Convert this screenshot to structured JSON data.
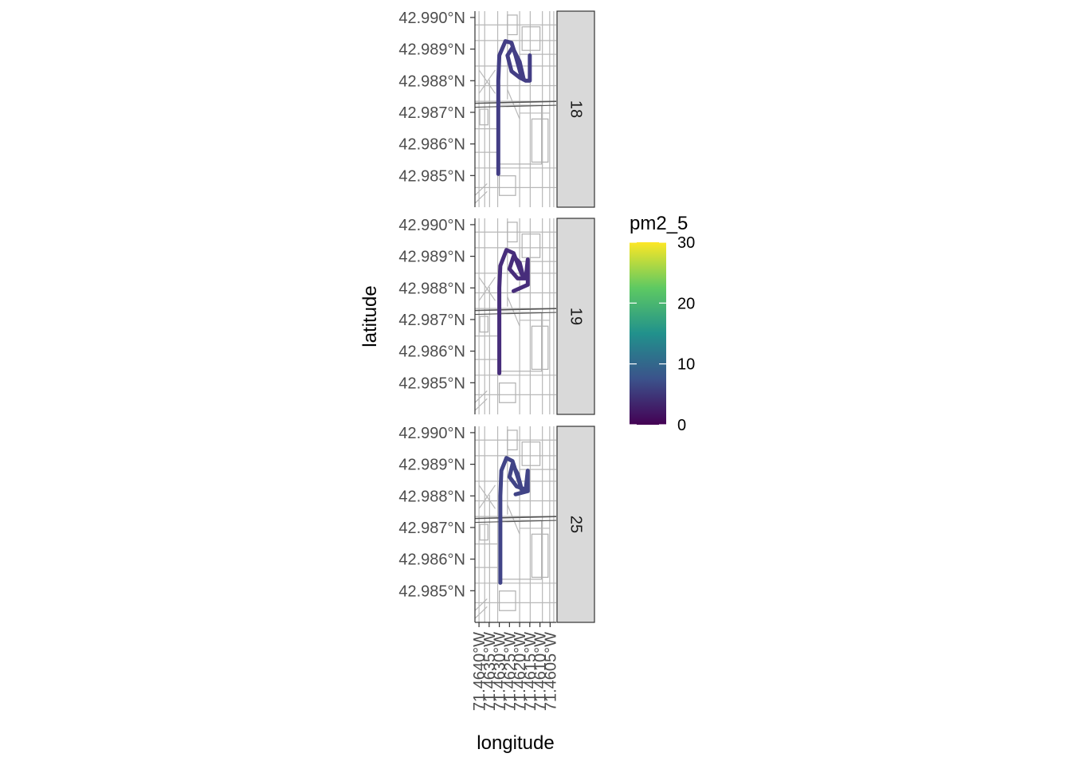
{
  "chart_data": {
    "type": "scatter",
    "facet_variable_values": [
      "18",
      "19",
      "25"
    ],
    "xlabel": "longitude",
    "ylabel": "latitude",
    "x_ticks": [
      -71.464,
      -71.4635,
      -71.463,
      -71.4625,
      -71.462,
      -71.4615,
      -71.461,
      -71.4605
    ],
    "x_tick_labels": [
      "71.4640°W",
      "71.4635°W",
      "71.4630°W",
      "71.4625°W",
      "71.4620°W",
      "71.4615°W",
      "71.4610°W",
      "71.4605°W"
    ],
    "y_ticks": [
      42.99,
      42.989,
      42.988,
      42.987,
      42.986,
      42.985
    ],
    "y_tick_labels": [
      "42.990°N",
      "42.989°N",
      "42.988°N",
      "42.987°N",
      "42.986°N",
      "42.985°N"
    ],
    "xlim": [
      -71.4642,
      -71.4602
    ],
    "ylim": [
      42.984,
      42.9902
    ],
    "grid": false,
    "basemap": "street-map",
    "legend": {
      "title": "pm2_5",
      "position": "right",
      "range": [
        0,
        30
      ],
      "ticks": [
        0,
        10,
        20,
        30
      ],
      "tick_labels": [
        "0",
        "10",
        "20",
        "30"
      ],
      "colormap": "viridis",
      "colors": [
        "#440154",
        "#3b528b",
        "#21918c",
        "#5ec962",
        "#fde725"
      ]
    },
    "panels": [
      {
        "label": "18",
        "pm2_5_approx": 5,
        "color": "#433e85",
        "track": [
          [
            -71.46305,
            42.98505
          ],
          [
            -71.46305,
            42.986
          ],
          [
            -71.46305,
            42.987
          ],
          [
            -71.46305,
            42.988
          ],
          [
            -71.463,
            42.9888
          ],
          [
            -71.4627,
            42.98925
          ],
          [
            -71.4624,
            42.9892
          ],
          [
            -71.4622,
            42.9888
          ],
          [
            -71.4619,
            42.9881
          ],
          [
            -71.4618,
            42.98805
          ],
          [
            -71.462,
            42.9886
          ],
          [
            -71.46235,
            42.98905
          ],
          [
            -71.4626,
            42.9888
          ],
          [
            -71.4624,
            42.9883
          ],
          [
            -71.462,
            42.9881
          ],
          [
            -71.4617,
            42.988
          ],
          [
            -71.4615,
            42.988
          ],
          [
            -71.4615,
            42.9888
          ]
        ]
      },
      {
        "label": "19",
        "pm2_5_approx": 3,
        "color": "#472d7b",
        "track": [
          [
            -71.463,
            42.9853
          ],
          [
            -71.463,
            42.986
          ],
          [
            -71.463,
            42.987
          ],
          [
            -71.463,
            42.988
          ],
          [
            -71.46295,
            42.9887
          ],
          [
            -71.46265,
            42.9892
          ],
          [
            -71.4623,
            42.9891
          ],
          [
            -71.462,
            42.9886
          ],
          [
            -71.4618,
            42.9883
          ],
          [
            -71.462,
            42.9888
          ],
          [
            -71.4623,
            42.989
          ],
          [
            -71.4625,
            42.9886
          ],
          [
            -71.4621,
            42.9883
          ],
          [
            -71.4617,
            42.9883
          ],
          [
            -71.4616,
            42.9889
          ],
          [
            -71.4616,
            42.9881
          ],
          [
            -71.4623,
            42.9879
          ]
        ]
      },
      {
        "label": "25",
        "pm2_5_approx": 5,
        "color": "#414487",
        "track": [
          [
            -71.46295,
            42.98525
          ],
          [
            -71.46295,
            42.986
          ],
          [
            -71.46295,
            42.987
          ],
          [
            -71.46295,
            42.988
          ],
          [
            -71.4629,
            42.9888
          ],
          [
            -71.46265,
            42.9892
          ],
          [
            -71.46235,
            42.9891
          ],
          [
            -71.4621,
            42.9886
          ],
          [
            -71.4619,
            42.9882
          ],
          [
            -71.4621,
            42.9887
          ],
          [
            -71.46235,
            42.989
          ],
          [
            -71.4625,
            42.9886
          ],
          [
            -71.46215,
            42.9883
          ],
          [
            -71.4617,
            42.9882
          ],
          [
            -71.4616,
            42.9888
          ],
          [
            -71.4616,
            42.98815
          ],
          [
            -71.4622,
            42.98805
          ]
        ]
      }
    ]
  }
}
